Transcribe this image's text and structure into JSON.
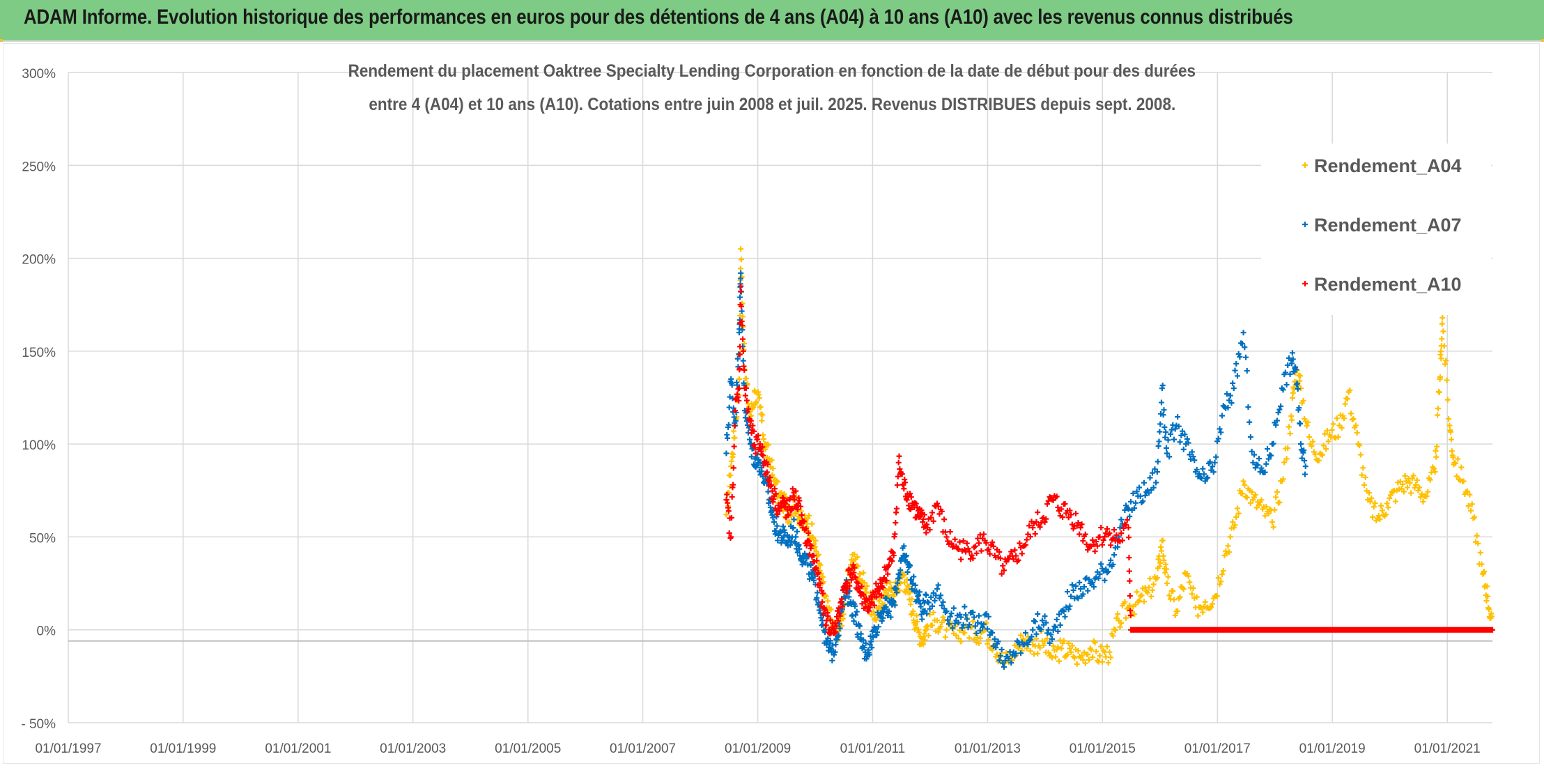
{
  "header": {
    "banner": "ADAM Informe. Evolution historique des performances en euros pour des détentions de 4 ans (A04) à 10 ans (A10) avec les revenus connus distribués"
  },
  "colors": {
    "banner_bg": "#7dcb84",
    "A04": "#ffc000",
    "A07": "#0070c0",
    "A10": "#ff0000",
    "grid": "#d9d9d9",
    "axis_text": "#595959"
  },
  "chart_data": {
    "type": "scatter",
    "title_line1": "Rendement du placement Oaktree Specialty Lending Corporation en fonction de la date de début pour des durées",
    "title_line2": "entre 4 (A04) et 10 ans (A10). Cotations entre juin 2008 et juil. 2025. Revenus DISTRIBUES depuis sept. 2008.",
    "x_axis": {
      "type": "date",
      "range": [
        "1997-01-01",
        "2021-10-15"
      ],
      "tick_labels": [
        "01/01/1997",
        "01/01/1999",
        "01/01/2001",
        "01/01/2003",
        "01/01/2005",
        "01/01/2007",
        "01/01/2009",
        "01/01/2011",
        "01/01/2013",
        "01/01/2015",
        "01/01/2017",
        "01/01/2019",
        "01/01/2021"
      ]
    },
    "y_axis": {
      "format": "percent",
      "range": [
        -50,
        300
      ],
      "tick_labels": [
        "300%",
        "250%",
        "200%",
        "150%",
        "100%",
        "50%",
        "0%",
        "- 50%"
      ]
    },
    "grid": true,
    "legend_position": "top-right",
    "marker": "plus",
    "series": [
      {
        "name": "Rendement_A04",
        "color": "#ffc000",
        "points": [
          [
            "2008-06-15",
            62
          ],
          [
            "2008-07-15",
            88
          ],
          [
            "2008-08-10",
            110
          ],
          [
            "2008-09-05",
            135
          ],
          [
            "2008-09-15",
            205
          ],
          [
            "2008-10-10",
            140
          ],
          [
            "2008-11-15",
            115
          ],
          [
            "2008-12-15",
            128
          ],
          [
            "2009-01-15",
            120
          ],
          [
            "2009-02-15",
            100
          ],
          [
            "2009-03-15",
            92
          ],
          [
            "2009-04-15",
            80
          ],
          [
            "2009-05-15",
            72
          ],
          [
            "2009-06-15",
            68
          ],
          [
            "2009-07-15",
            62
          ],
          [
            "2009-08-15",
            70
          ],
          [
            "2009-09-15",
            64
          ],
          [
            "2009-10-15",
            55
          ],
          [
            "2009-11-15",
            60
          ],
          [
            "2009-12-15",
            50
          ],
          [
            "2010-01-15",
            40
          ],
          [
            "2010-02-15",
            25
          ],
          [
            "2010-03-15",
            12
          ],
          [
            "2010-04-15",
            5
          ],
          [
            "2010-05-15",
            -2
          ],
          [
            "2010-06-15",
            5
          ],
          [
            "2010-07-15",
            20
          ],
          [
            "2010-08-15",
            35
          ],
          [
            "2010-09-15",
            38
          ],
          [
            "2010-10-15",
            30
          ],
          [
            "2010-11-15",
            22
          ],
          [
            "2010-12-15",
            15
          ],
          [
            "2011-01-15",
            8
          ],
          [
            "2011-02-15",
            12
          ],
          [
            "2011-03-15",
            18
          ],
          [
            "2011-04-15",
            22
          ],
          [
            "2011-05-15",
            18
          ],
          [
            "2011-06-15",
            25
          ],
          [
            "2011-07-15",
            30
          ],
          [
            "2011-08-15",
            20
          ],
          [
            "2011-09-15",
            10
          ],
          [
            "2011-10-15",
            0
          ],
          [
            "2011-11-15",
            -5
          ],
          [
            "2011-12-15",
            2
          ],
          [
            "2012-02-15",
            5
          ],
          [
            "2012-04-15",
            0
          ],
          [
            "2012-06-15",
            -3
          ],
          [
            "2012-08-15",
            2
          ],
          [
            "2012-10-15",
            -2
          ],
          [
            "2012-12-15",
            0
          ],
          [
            "2013-02-15",
            -8
          ],
          [
            "2013-04-15",
            -18
          ],
          [
            "2013-06-15",
            -12
          ],
          [
            "2013-08-15",
            -5
          ],
          [
            "2013-10-15",
            -8
          ],
          [
            "2013-12-15",
            -6
          ],
          [
            "2014-02-15",
            -15
          ],
          [
            "2014-04-15",
            -10
          ],
          [
            "2014-06-15",
            -12
          ],
          [
            "2014-08-15",
            -15
          ],
          [
            "2014-10-15",
            -10
          ],
          [
            "2014-12-15",
            -14
          ],
          [
            "2015-02-15",
            -12
          ],
          [
            "2015-04-15",
            5
          ],
          [
            "2015-06-15",
            12
          ],
          [
            "2015-08-15",
            15
          ],
          [
            "2015-10-15",
            20
          ],
          [
            "2015-12-15",
            28
          ],
          [
            "2016-01-15",
            48
          ],
          [
            "2016-02-15",
            25
          ],
          [
            "2016-04-15",
            10
          ],
          [
            "2016-06-15",
            30
          ],
          [
            "2016-08-15",
            12
          ],
          [
            "2016-10-15",
            15
          ],
          [
            "2016-12-15",
            18
          ],
          [
            "2017-02-15",
            40
          ],
          [
            "2017-04-15",
            55
          ],
          [
            "2017-06-15",
            80
          ],
          [
            "2017-08-15",
            70
          ],
          [
            "2017-10-15",
            65
          ],
          [
            "2017-12-15",
            58
          ],
          [
            "2018-02-15",
            80
          ],
          [
            "2018-04-15",
            115
          ],
          [
            "2018-05-15",
            140
          ],
          [
            "2018-06-15",
            130
          ],
          [
            "2018-08-15",
            100
          ],
          [
            "2018-10-15",
            95
          ],
          [
            "2018-12-15",
            105
          ],
          [
            "2019-02-15",
            110
          ],
          [
            "2019-04-15",
            128
          ],
          [
            "2019-06-15",
            100
          ],
          [
            "2019-08-15",
            70
          ],
          [
            "2019-10-15",
            60
          ],
          [
            "2019-12-15",
            68
          ],
          [
            "2020-02-15",
            75
          ],
          [
            "2020-04-15",
            80
          ],
          [
            "2020-06-15",
            78
          ],
          [
            "2020-08-15",
            72
          ],
          [
            "2020-10-15",
            85
          ],
          [
            "2020-11-15",
            135
          ],
          [
            "2020-12-01",
            168
          ],
          [
            "2021-01-15",
            110
          ],
          [
            "2021-02-15",
            90
          ],
          [
            "2021-04-15",
            80
          ],
          [
            "2021-06-15",
            60
          ],
          [
            "2021-08-15",
            30
          ],
          [
            "2021-09-15",
            18
          ],
          [
            "2021-10-15",
            0
          ]
        ]
      },
      {
        "name": "Rendement_A07",
        "color": "#0070c0",
        "points": [
          [
            "2008-06-15",
            95
          ],
          [
            "2008-07-15",
            135
          ],
          [
            "2008-08-10",
            110
          ],
          [
            "2008-09-05",
            160
          ],
          [
            "2008-09-15",
            192
          ],
          [
            "2008-10-10",
            118
          ],
          [
            "2008-11-15",
            100
          ],
          [
            "2008-12-15",
            92
          ],
          [
            "2009-01-15",
            90
          ],
          [
            "2009-02-15",
            80
          ],
          [
            "2009-03-15",
            70
          ],
          [
            "2009-04-15",
            58
          ],
          [
            "2009-05-15",
            52
          ],
          [
            "2009-06-15",
            50
          ],
          [
            "2009-07-15",
            48
          ],
          [
            "2009-08-15",
            55
          ],
          [
            "2009-09-15",
            45
          ],
          [
            "2009-10-15",
            40
          ],
          [
            "2009-11-15",
            35
          ],
          [
            "2009-12-15",
            28
          ],
          [
            "2010-01-15",
            20
          ],
          [
            "2010-02-15",
            5
          ],
          [
            "2010-03-15",
            -8
          ],
          [
            "2010-04-15",
            -12
          ],
          [
            "2010-05-15",
            -5
          ],
          [
            "2010-06-15",
            10
          ],
          [
            "2010-07-15",
            22
          ],
          [
            "2010-08-15",
            15
          ],
          [
            "2010-09-15",
            8
          ],
          [
            "2010-10-15",
            -5
          ],
          [
            "2010-11-15",
            -12
          ],
          [
            "2010-12-15",
            -8
          ],
          [
            "2011-01-15",
            0
          ],
          [
            "2011-02-15",
            8
          ],
          [
            "2011-03-15",
            12
          ],
          [
            "2011-04-15",
            10
          ],
          [
            "2011-05-15",
            15
          ],
          [
            "2011-06-15",
            30
          ],
          [
            "2011-07-15",
            40
          ],
          [
            "2011-08-15",
            35
          ],
          [
            "2011-09-15",
            25
          ],
          [
            "2011-10-15",
            18
          ],
          [
            "2011-11-15",
            10
          ],
          [
            "2011-12-15",
            15
          ],
          [
            "2012-02-15",
            22
          ],
          [
            "2012-04-15",
            10
          ],
          [
            "2012-06-15",
            5
          ],
          [
            "2012-08-15",
            8
          ],
          [
            "2012-10-15",
            2
          ],
          [
            "2012-12-15",
            8
          ],
          [
            "2013-02-15",
            -5
          ],
          [
            "2013-04-15",
            -20
          ],
          [
            "2013-06-15",
            -12
          ],
          [
            "2013-08-15",
            -8
          ],
          [
            "2013-10-15",
            0
          ],
          [
            "2013-12-15",
            5
          ],
          [
            "2014-02-15",
            -5
          ],
          [
            "2014-04-15",
            10
          ],
          [
            "2014-06-15",
            18
          ],
          [
            "2014-08-15",
            22
          ],
          [
            "2014-10-15",
            25
          ],
          [
            "2014-12-15",
            30
          ],
          [
            "2015-02-15",
            35
          ],
          [
            "2015-04-15",
            50
          ],
          [
            "2015-06-15",
            65
          ],
          [
            "2015-08-15",
            72
          ],
          [
            "2015-10-15",
            75
          ],
          [
            "2015-12-15",
            85
          ],
          [
            "2016-01-15",
            130
          ],
          [
            "2016-02-15",
            95
          ],
          [
            "2016-04-15",
            110
          ],
          [
            "2016-06-15",
            100
          ],
          [
            "2016-08-15",
            85
          ],
          [
            "2016-10-15",
            80
          ],
          [
            "2016-12-15",
            90
          ],
          [
            "2017-02-15",
            120
          ],
          [
            "2017-04-15",
            130
          ],
          [
            "2017-06-15",
            160
          ],
          [
            "2017-08-15",
            90
          ],
          [
            "2017-10-15",
            85
          ],
          [
            "2017-12-15",
            100
          ],
          [
            "2018-02-15",
            130
          ],
          [
            "2018-04-15",
            145
          ],
          [
            "2018-05-15",
            140
          ],
          [
            "2018-06-15",
            100
          ],
          [
            "2018-07-15",
            88
          ]
        ]
      },
      {
        "name": "Rendement_A10",
        "color": "#ff0000",
        "points": [
          [
            "2008-06-15",
            70
          ],
          [
            "2008-07-15",
            50
          ],
          [
            "2008-08-10",
            118
          ],
          [
            "2008-09-05",
            130
          ],
          [
            "2008-09-15",
            185
          ],
          [
            "2008-10-10",
            130
          ],
          [
            "2008-11-15",
            110
          ],
          [
            "2008-12-15",
            98
          ],
          [
            "2009-01-15",
            100
          ],
          [
            "2009-02-15",
            90
          ],
          [
            "2009-03-15",
            80
          ],
          [
            "2009-04-15",
            72
          ],
          [
            "2009-05-15",
            65
          ],
          [
            "2009-06-15",
            68
          ],
          [
            "2009-07-15",
            62
          ],
          [
            "2009-08-15",
            72
          ],
          [
            "2009-09-15",
            68
          ],
          [
            "2009-10-15",
            55
          ],
          [
            "2009-11-15",
            48
          ],
          [
            "2009-12-15",
            40
          ],
          [
            "2010-01-15",
            30
          ],
          [
            "2010-02-15",
            15
          ],
          [
            "2010-03-15",
            5
          ],
          [
            "2010-04-15",
            0
          ],
          [
            "2010-05-15",
            2
          ],
          [
            "2010-06-15",
            15
          ],
          [
            "2010-07-15",
            25
          ],
          [
            "2010-08-15",
            30
          ],
          [
            "2010-09-15",
            28
          ],
          [
            "2010-10-15",
            20
          ],
          [
            "2010-11-15",
            15
          ],
          [
            "2010-12-15",
            12
          ],
          [
            "2011-01-15",
            18
          ],
          [
            "2011-02-15",
            22
          ],
          [
            "2011-03-15",
            28
          ],
          [
            "2011-04-15",
            35
          ],
          [
            "2011-05-15",
            40
          ],
          [
            "2011-06-15",
            90
          ],
          [
            "2011-07-15",
            78
          ],
          [
            "2011-08-15",
            72
          ],
          [
            "2011-09-15",
            68
          ],
          [
            "2011-10-15",
            62
          ],
          [
            "2011-11-15",
            58
          ],
          [
            "2011-12-15",
            55
          ],
          [
            "2012-02-15",
            68
          ],
          [
            "2012-04-15",
            50
          ],
          [
            "2012-06-15",
            45
          ],
          [
            "2012-08-15",
            42
          ],
          [
            "2012-10-15",
            45
          ],
          [
            "2012-12-15",
            48
          ],
          [
            "2013-02-15",
            40
          ],
          [
            "2013-04-15",
            32
          ],
          [
            "2013-06-15",
            38
          ],
          [
            "2013-08-15",
            45
          ],
          [
            "2013-10-15",
            55
          ],
          [
            "2013-12-15",
            60
          ],
          [
            "2014-02-15",
            70
          ],
          [
            "2014-04-15",
            65
          ],
          [
            "2014-06-15",
            62
          ],
          [
            "2014-08-15",
            55
          ],
          [
            "2014-10-15",
            45
          ],
          [
            "2014-12-15",
            50
          ],
          [
            "2015-02-15",
            52
          ],
          [
            "2015-04-15",
            48
          ],
          [
            "2015-06-15",
            55
          ],
          [
            "2015-07-01",
            0
          ],
          [
            "2021-10-15",
            0
          ]
        ]
      }
    ]
  }
}
